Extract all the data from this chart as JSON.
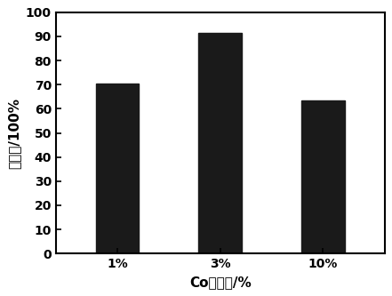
{
  "categories": [
    "1%",
    "3%",
    "10%"
  ],
  "values": [
    70.5,
    91.5,
    63.5
  ],
  "bar_color": "#1a1a1a",
  "bar_width": 0.42,
  "xlabel": "Co的含量/%",
  "ylabel": "去除率/100%",
  "ylim": [
    0,
    100
  ],
  "yticks": [
    0,
    10,
    20,
    30,
    40,
    50,
    60,
    70,
    80,
    90,
    100
  ],
  "background_color": "#ffffff",
  "tick_fontsize": 10,
  "label_fontsize": 11
}
